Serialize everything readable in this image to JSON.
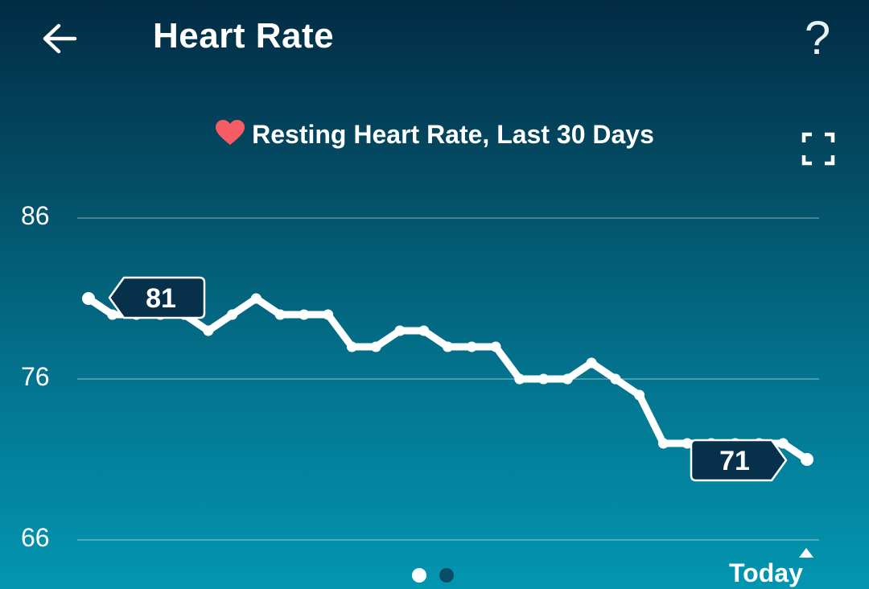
{
  "header": {
    "title": "Heart Rate",
    "back_icon": "arrow-left-icon",
    "help_label": "?"
  },
  "chart_data": {
    "type": "line",
    "title": "Resting Heart Rate, Last 30 Days",
    "x_end_label": "Today",
    "y_ticks": [
      86,
      76,
      66
    ],
    "ylim": [
      66,
      86
    ],
    "values": [
      81,
      80,
      80,
      80,
      80,
      79,
      80,
      81,
      80,
      80,
      80,
      78,
      78,
      79,
      79,
      78,
      78,
      78,
      76,
      76,
      76,
      77,
      76,
      75,
      72,
      72,
      72,
      72,
      72,
      72,
      71
    ],
    "callouts": [
      {
        "index": 0,
        "label": "81"
      },
      {
        "index": 30,
        "label": "71"
      }
    ],
    "line_color": "#ffffff",
    "grid": true
  },
  "controls": {
    "expand_icon": "expand-icon",
    "heart_icon": "heart-icon"
  },
  "pager": {
    "count": 2,
    "active_index": 0
  }
}
